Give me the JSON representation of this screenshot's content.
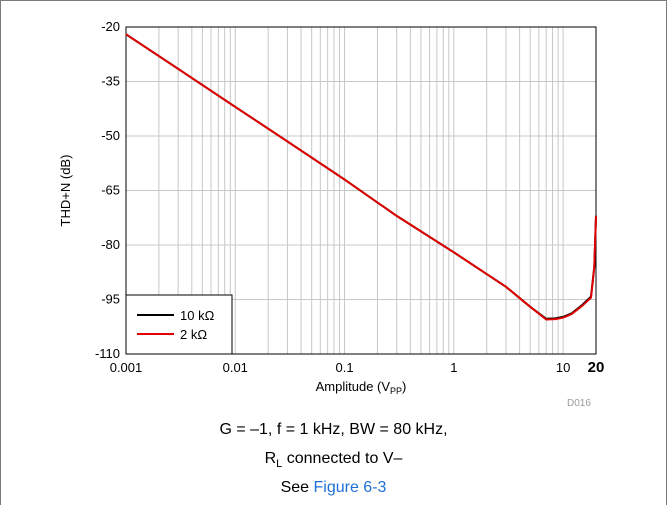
{
  "chart_data": {
    "type": "line",
    "xlabel_main": "Amplitude (V",
    "xlabel_sub": "PP",
    "xlabel_end": ")",
    "ylabel": "THD+N (dB)",
    "xscale": "log",
    "xlim": [
      0.001,
      20
    ],
    "ylim": [
      -110,
      -20
    ],
    "yticks": [
      -20,
      -35,
      -50,
      -65,
      -80,
      -95,
      -110
    ],
    "xticks": [
      {
        "value": 0.001,
        "label": "0.001",
        "bold": false
      },
      {
        "value": 0.01,
        "label": "0.01",
        "bold": false
      },
      {
        "value": 0.1,
        "label": "0.1",
        "bold": false
      },
      {
        "value": 1,
        "label": "1",
        "bold": false
      },
      {
        "value": 10,
        "label": "10",
        "bold": false
      },
      {
        "value": 20,
        "label": "20",
        "bold": true
      }
    ],
    "grid": true,
    "legend_position": "bottom-left",
    "series": [
      {
        "name": "10 kΩ",
        "color": "#000000",
        "points": [
          [
            0.001,
            -22
          ],
          [
            0.003,
            -31.5
          ],
          [
            0.01,
            -42
          ],
          [
            0.03,
            -51.5
          ],
          [
            0.1,
            -62
          ],
          [
            0.3,
            -72
          ],
          [
            1,
            -82
          ],
          [
            2,
            -88
          ],
          [
            3,
            -91.5
          ],
          [
            5,
            -97
          ],
          [
            7,
            -100.3
          ],
          [
            8.5,
            -100.2
          ],
          [
            10,
            -99.8
          ],
          [
            12,
            -98.8
          ],
          [
            15,
            -96.5
          ],
          [
            18,
            -94.2
          ],
          [
            19.3,
            -86
          ],
          [
            20,
            -72
          ]
        ]
      },
      {
        "name": "2 kΩ",
        "color": "#e00000",
        "points": [
          [
            0.001,
            -22
          ],
          [
            0.003,
            -31.5
          ],
          [
            0.01,
            -42
          ],
          [
            0.03,
            -51.5
          ],
          [
            0.1,
            -62
          ],
          [
            0.3,
            -72
          ],
          [
            1,
            -82
          ],
          [
            2,
            -88
          ],
          [
            3,
            -91.5
          ],
          [
            5,
            -97
          ],
          [
            7,
            -100.5
          ],
          [
            8.5,
            -100.4
          ],
          [
            10,
            -100
          ],
          [
            12,
            -99
          ],
          [
            15,
            -96.7
          ],
          [
            18,
            -94.5
          ],
          [
            19.3,
            -86
          ],
          [
            20,
            -72
          ]
        ]
      }
    ],
    "watermark": "D016"
  },
  "caption": {
    "line1": "G = –1, f = 1 kHz, BW = 80 kHz,",
    "line2_main": "R",
    "line2_sub": "L",
    "line2_rest": " connected to V–",
    "line3_prefix": "See ",
    "line3_link": "Figure 6-3"
  }
}
